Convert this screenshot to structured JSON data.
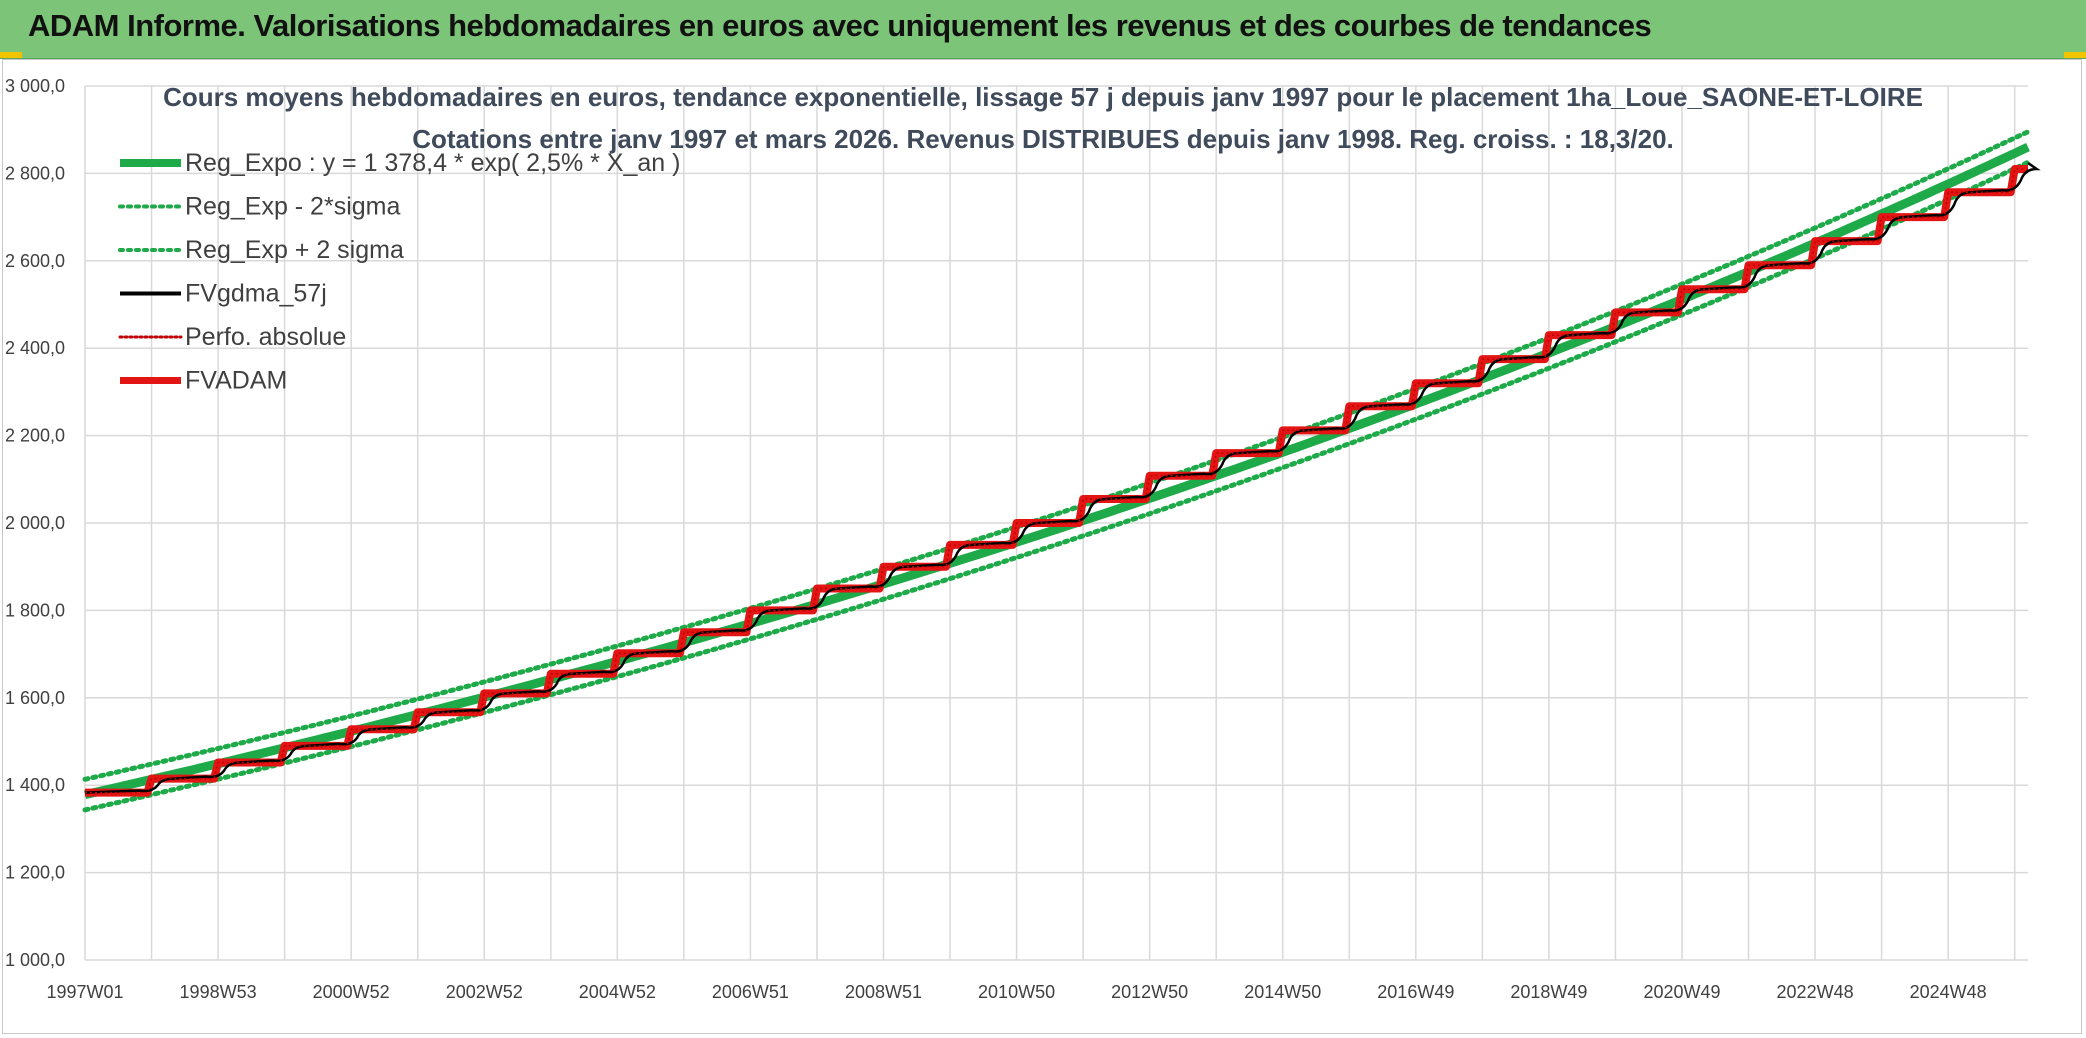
{
  "header": {
    "title": "ADAM Informe. Valorisations hebdomadaires en euros avec uniquement les revenus et des courbes de tendances"
  },
  "colors": {
    "header_bg": "#7cc478",
    "trend": "#1faa4a",
    "fvgdma": "#000000",
    "fvadam": "#e31414",
    "perfo": "#c00000"
  },
  "chart_data": {
    "type": "line",
    "title_lines": [
      "Cours moyens hebdomadaires en euros, tendance exponentielle, lissage 57 j depuis janv 1997 pour le placement 1ha_Loue_SAONE-ET-LOIRE",
      "Cotations entre janv 1997 et mars 2026. Revenus DISTRIBUES depuis janv 1998. Reg. croiss. : 18,3/20."
    ],
    "y_axis": {
      "min": 1000,
      "max": 3000,
      "ticks": [
        "1 000,0",
        "1 200,0",
        "1 400,0",
        "1 600,0",
        "1 800,0",
        "2 000,0",
        "2 200,0",
        "2 400,0",
        "2 600,0",
        "2 800,0",
        "3 000,0"
      ],
      "tick_values": [
        1000,
        1200,
        1400,
        1600,
        1800,
        2000,
        2200,
        2400,
        2600,
        2800,
        3000
      ]
    },
    "x_axis": {
      "start_year": 1997,
      "end_year": 2026.2,
      "tick_labels": [
        "1997W01",
        "1998W53",
        "2000W52",
        "2002W52",
        "2004W52",
        "2006W51",
        "2008W51",
        "2010W50",
        "2012W50",
        "2014W50",
        "2016W49",
        "2018W49",
        "2020W49",
        "2022W48",
        "2024W48"
      ],
      "tick_years": [
        1997,
        1999,
        2001,
        2003,
        2005,
        2007,
        2009,
        2011,
        2013,
        2015,
        2017,
        2019,
        2021,
        2023,
        2025
      ],
      "gridline_interval_years": 1
    },
    "grid": true,
    "legend_position": "top-left",
    "series": [
      {
        "key": "reg_expo",
        "name": "Reg_Expo : y = 1 378,4 * exp( 2,5% *  X_an )",
        "style": "solid-thick",
        "color": "#1faa4a",
        "a": 1378.4,
        "r": 0.025
      },
      {
        "key": "reg_minus",
        "name": "Reg_Exp - 2*sigma",
        "style": "dotted",
        "color": "#1faa4a",
        "offset": -35
      },
      {
        "key": "reg_plus",
        "name": "Reg_Exp + 2 sigma",
        "style": "dotted",
        "color": "#1faa4a",
        "offset": 35
      },
      {
        "key": "fvgdma",
        "name": "FVgdma_57j",
        "style": "solid",
        "color": "#000000"
      },
      {
        "key": "perfo",
        "name": "Perfo. absolue",
        "style": "dotted-thin",
        "color": "#c00000"
      },
      {
        "key": "fvadam",
        "name": "FVADAM",
        "style": "solid-thick",
        "color": "#e31414"
      }
    ],
    "fvadam_annual_levels": [
      {
        "year": 1997,
        "value": 1383
      },
      {
        "year": 1998,
        "value": 1415
      },
      {
        "year": 1999,
        "value": 1452
      },
      {
        "year": 2000,
        "value": 1490
      },
      {
        "year": 2001,
        "value": 1528
      },
      {
        "year": 2002,
        "value": 1567
      },
      {
        "year": 2003,
        "value": 1610
      },
      {
        "year": 2004,
        "value": 1655
      },
      {
        "year": 2005,
        "value": 1702
      },
      {
        "year": 2006,
        "value": 1750
      },
      {
        "year": 2007,
        "value": 1800
      },
      {
        "year": 2008,
        "value": 1850
      },
      {
        "year": 2009,
        "value": 1900
      },
      {
        "year": 2010,
        "value": 1950
      },
      {
        "year": 2011,
        "value": 2000
      },
      {
        "year": 2012,
        "value": 2055
      },
      {
        "year": 2013,
        "value": 2108
      },
      {
        "year": 2014,
        "value": 2160
      },
      {
        "year": 2015,
        "value": 2212
      },
      {
        "year": 2016,
        "value": 2267
      },
      {
        "year": 2017,
        "value": 2320
      },
      {
        "year": 2018,
        "value": 2375
      },
      {
        "year": 2019,
        "value": 2430
      },
      {
        "year": 2020,
        "value": 2482
      },
      {
        "year": 2021,
        "value": 2535
      },
      {
        "year": 2022,
        "value": 2590
      },
      {
        "year": 2023,
        "value": 2645
      },
      {
        "year": 2024,
        "value": 2700
      },
      {
        "year": 2025,
        "value": 2757
      },
      {
        "year": 2026,
        "value": 2810
      }
    ]
  }
}
